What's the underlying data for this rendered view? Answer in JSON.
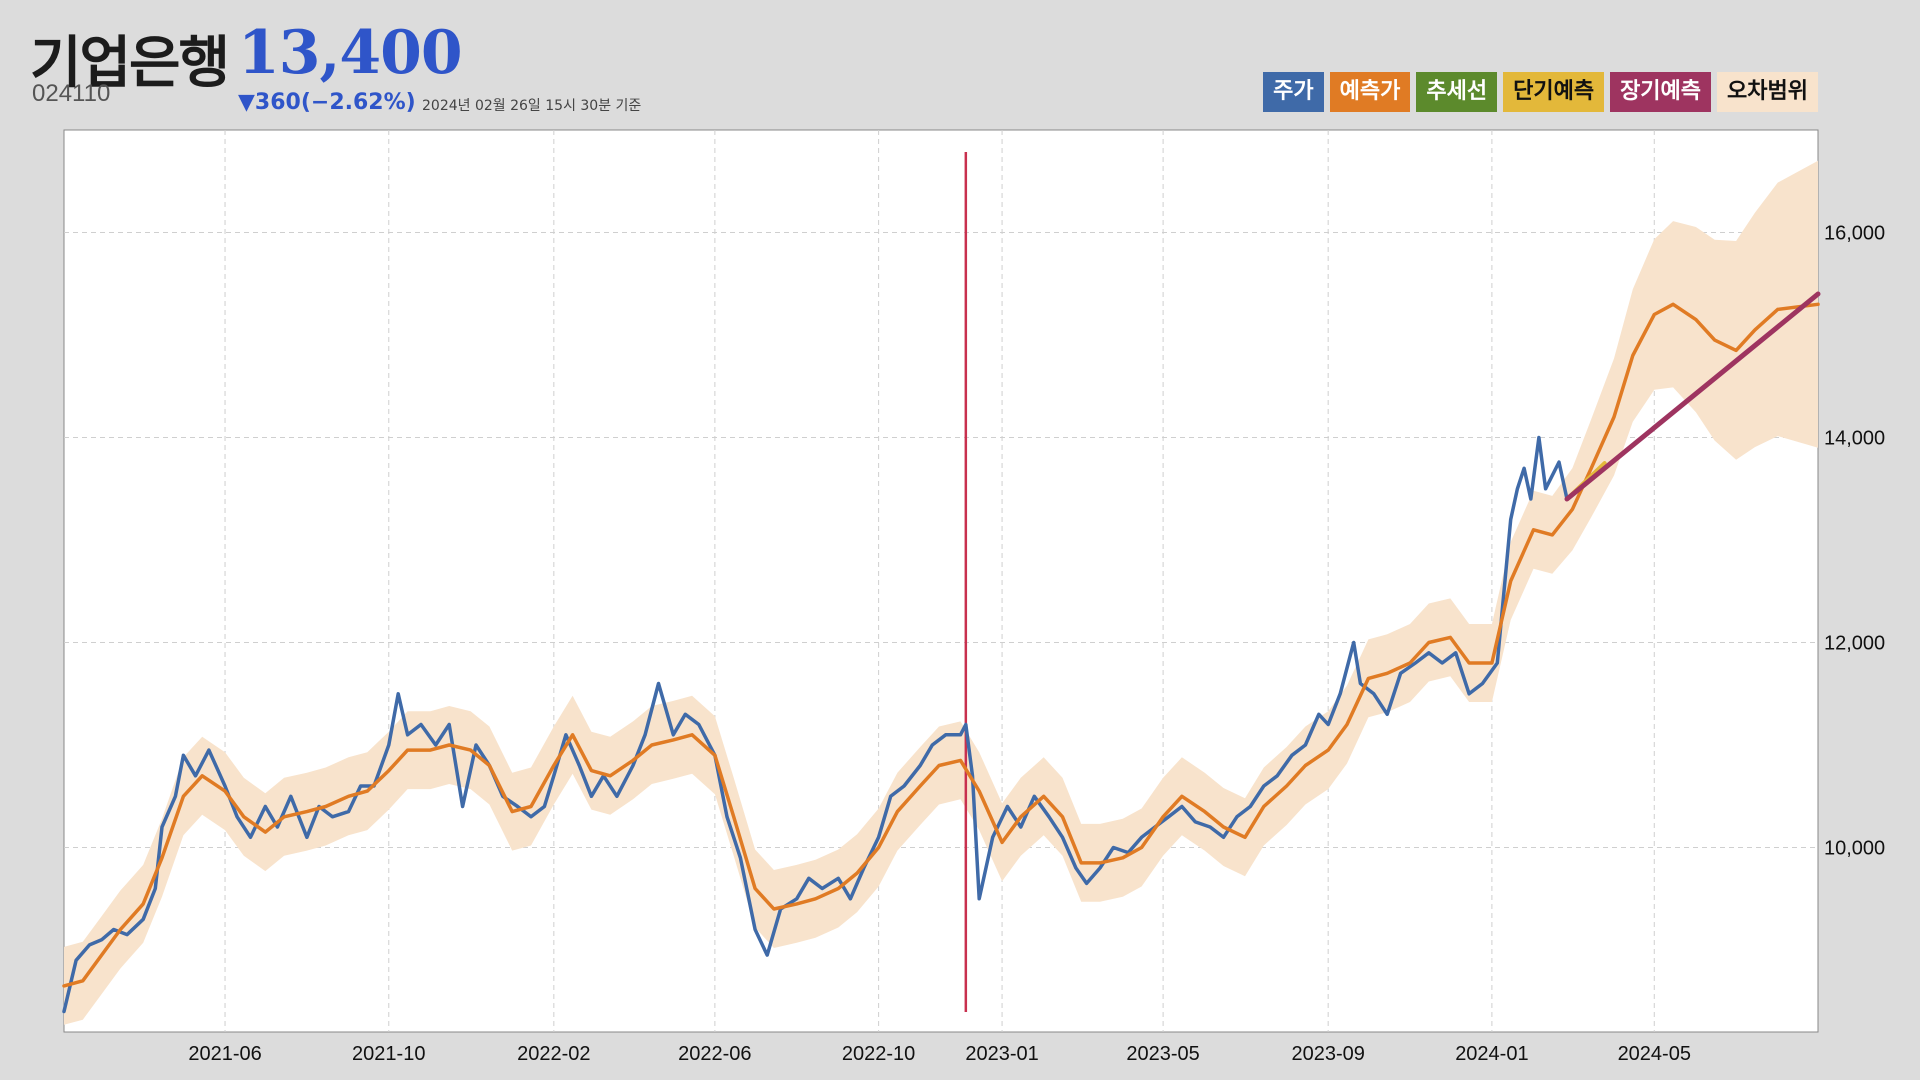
{
  "header": {
    "company_name": "기업은행",
    "price": "13,400",
    "ticker": "024110",
    "change": "▼360(−2.62%)",
    "as_of": "2024년 02월 26일 15시 30분 기준"
  },
  "legend": [
    {
      "label": "주가",
      "color": "#3f6aa8",
      "text_color": "#ffffff"
    },
    {
      "label": "예측가",
      "color": "#e07b24",
      "text_color": "#ffffff"
    },
    {
      "label": "추세선",
      "color": "#5c8a2c",
      "text_color": "#ffffff"
    },
    {
      "label": "단기예측",
      "color": "#e3b83a",
      "text_color": "#111111"
    },
    {
      "label": "장기예측",
      "color": "#9e3460",
      "text_color": "#ffffff"
    },
    {
      "label": "오차범위",
      "color": "#f8e3cc",
      "text_color": "#111111"
    }
  ],
  "chart_data": {
    "type": "line",
    "x_axis_type": "date",
    "xlim": [
      "2021-02-01",
      "2024-08-31"
    ],
    "ylim": [
      8200,
      17000
    ],
    "x_tick_labels": [
      "2021-06",
      "2021-10",
      "2022-02",
      "2022-06",
      "2022-10",
      "2023-01",
      "2023-05",
      "2023-09",
      "2024-01",
      "2024-05"
    ],
    "x_tick_dates": [
      "2021-06-01",
      "2021-10-01",
      "2022-02-01",
      "2022-06-01",
      "2022-10-01",
      "2023-01-01",
      "2023-05-01",
      "2023-09-01",
      "2024-01-01",
      "2024-05-01"
    ],
    "y_ticks": [
      10000,
      12000,
      14000,
      16000
    ],
    "y_tick_labels": [
      "10,000",
      "12,000",
      "14,000",
      "16,000"
    ],
    "grid": true,
    "vertical_marker_date": "2022-12-05",
    "colors": {
      "price": "#3f6aa8",
      "prediction": "#e07b24",
      "short_term": "#e3b83a",
      "long_term": "#9e3460",
      "error_band": "#f8e3cc",
      "marker": "#c8304e"
    },
    "series": [
      {
        "name": "주가",
        "points": [
          [
            "2021-02-01",
            8400
          ],
          [
            "2021-02-10",
            8900
          ],
          [
            "2021-02-20",
            9050
          ],
          [
            "2021-03-01",
            9100
          ],
          [
            "2021-03-10",
            9200
          ],
          [
            "2021-03-20",
            9150
          ],
          [
            "2021-04-01",
            9300
          ],
          [
            "2021-04-10",
            9600
          ],
          [
            "2021-04-15",
            10200
          ],
          [
            "2021-04-25",
            10500
          ],
          [
            "2021-05-01",
            10900
          ],
          [
            "2021-05-10",
            10700
          ],
          [
            "2021-05-20",
            10950
          ],
          [
            "2021-06-01",
            10600
          ],
          [
            "2021-06-10",
            10300
          ],
          [
            "2021-06-20",
            10100
          ],
          [
            "2021-07-01",
            10400
          ],
          [
            "2021-07-10",
            10200
          ],
          [
            "2021-07-20",
            10500
          ],
          [
            "2021-08-01",
            10100
          ],
          [
            "2021-08-10",
            10400
          ],
          [
            "2021-08-20",
            10300
          ],
          [
            "2021-09-01",
            10350
          ],
          [
            "2021-09-10",
            10600
          ],
          [
            "2021-09-20",
            10600
          ],
          [
            "2021-10-01",
            11000
          ],
          [
            "2021-10-08",
            11500
          ],
          [
            "2021-10-15",
            11100
          ],
          [
            "2021-10-25",
            11200
          ],
          [
            "2021-11-05",
            11000
          ],
          [
            "2021-11-15",
            11200
          ],
          [
            "2021-11-25",
            10400
          ],
          [
            "2021-12-05",
            11000
          ],
          [
            "2021-12-15",
            10800
          ],
          [
            "2021-12-25",
            10500
          ],
          [
            "2022-01-05",
            10400
          ],
          [
            "2022-01-15",
            10300
          ],
          [
            "2022-01-25",
            10400
          ],
          [
            "2022-02-01",
            10700
          ],
          [
            "2022-02-10",
            11100
          ],
          [
            "2022-02-20",
            10800
          ],
          [
            "2022-03-01",
            10500
          ],
          [
            "2022-03-10",
            10700
          ],
          [
            "2022-03-20",
            10500
          ],
          [
            "2022-04-01",
            10800
          ],
          [
            "2022-04-10",
            11100
          ],
          [
            "2022-04-20",
            11600
          ],
          [
            "2022-05-01",
            11100
          ],
          [
            "2022-05-10",
            11300
          ],
          [
            "2022-05-20",
            11200
          ],
          [
            "2022-06-01",
            10900
          ],
          [
            "2022-06-10",
            10300
          ],
          [
            "2022-06-20",
            9900
          ],
          [
            "2022-07-01",
            9200
          ],
          [
            "2022-07-10",
            8950
          ],
          [
            "2022-07-20",
            9400
          ],
          [
            "2022-08-01",
            9500
          ],
          [
            "2022-08-10",
            9700
          ],
          [
            "2022-08-20",
            9600
          ],
          [
            "2022-09-01",
            9700
          ],
          [
            "2022-09-10",
            9500
          ],
          [
            "2022-09-20",
            9800
          ],
          [
            "2022-10-01",
            10100
          ],
          [
            "2022-10-10",
            10500
          ],
          [
            "2022-10-20",
            10600
          ],
          [
            "2022-11-01",
            10800
          ],
          [
            "2022-11-10",
            11000
          ],
          [
            "2022-11-20",
            11100
          ],
          [
            "2022-12-01",
            11100
          ],
          [
            "2022-12-05",
            11200
          ],
          [
            "2022-12-10",
            10700
          ],
          [
            "2022-12-15",
            9500
          ],
          [
            "2022-12-25",
            10100
          ],
          [
            "2023-01-05",
            10400
          ],
          [
            "2023-01-15",
            10200
          ],
          [
            "2023-01-25",
            10500
          ],
          [
            "2023-02-05",
            10300
          ],
          [
            "2023-02-15",
            10100
          ],
          [
            "2023-02-25",
            9800
          ],
          [
            "2023-03-05",
            9650
          ],
          [
            "2023-03-15",
            9800
          ],
          [
            "2023-03-25",
            10000
          ],
          [
            "2023-04-05",
            9950
          ],
          [
            "2023-04-15",
            10100
          ],
          [
            "2023-04-25",
            10200
          ],
          [
            "2023-05-05",
            10300
          ],
          [
            "2023-05-15",
            10400
          ],
          [
            "2023-05-25",
            10250
          ],
          [
            "2023-06-05",
            10200
          ],
          [
            "2023-06-15",
            10100
          ],
          [
            "2023-06-25",
            10300
          ],
          [
            "2023-07-05",
            10400
          ],
          [
            "2023-07-15",
            10600
          ],
          [
            "2023-07-25",
            10700
          ],
          [
            "2023-08-05",
            10900
          ],
          [
            "2023-08-15",
            11000
          ],
          [
            "2023-08-25",
            11300
          ],
          [
            "2023-09-01",
            11200
          ],
          [
            "2023-09-10",
            11500
          ],
          [
            "2023-09-20",
            12000
          ],
          [
            "2023-09-25",
            11600
          ],
          [
            "2023-10-05",
            11500
          ],
          [
            "2023-10-15",
            11300
          ],
          [
            "2023-10-25",
            11700
          ],
          [
            "2023-11-05",
            11800
          ],
          [
            "2023-11-15",
            11900
          ],
          [
            "2023-11-25",
            11800
          ],
          [
            "2023-12-05",
            11900
          ],
          [
            "2023-12-15",
            11500
          ],
          [
            "2023-12-25",
            11600
          ],
          [
            "2024-01-05",
            11800
          ],
          [
            "2024-01-10",
            12500
          ],
          [
            "2024-01-15",
            13200
          ],
          [
            "2024-01-20",
            13500
          ],
          [
            "2024-01-25",
            13700
          ],
          [
            "2024-01-30",
            13400
          ],
          [
            "2024-02-05",
            14000
          ],
          [
            "2024-02-10",
            13500
          ],
          [
            "2024-02-20",
            13760
          ],
          [
            "2024-02-26",
            13400
          ]
        ]
      },
      {
        "name": "예측가",
        "points": [
          [
            "2021-02-01",
            8650
          ],
          [
            "2021-02-15",
            8700
          ],
          [
            "2021-03-01",
            8950
          ],
          [
            "2021-03-15",
            9200
          ],
          [
            "2021-04-01",
            9450
          ],
          [
            "2021-04-15",
            9900
          ],
          [
            "2021-05-01",
            10500
          ],
          [
            "2021-05-15",
            10700
          ],
          [
            "2021-06-01",
            10550
          ],
          [
            "2021-06-15",
            10300
          ],
          [
            "2021-07-01",
            10150
          ],
          [
            "2021-07-15",
            10300
          ],
          [
            "2021-08-01",
            10350
          ],
          [
            "2021-08-15",
            10400
          ],
          [
            "2021-09-01",
            10500
          ],
          [
            "2021-09-15",
            10550
          ],
          [
            "2021-10-01",
            10750
          ],
          [
            "2021-10-15",
            10950
          ],
          [
            "2021-11-01",
            10950
          ],
          [
            "2021-11-15",
            11000
          ],
          [
            "2021-12-01",
            10950
          ],
          [
            "2021-12-15",
            10800
          ],
          [
            "2022-01-01",
            10350
          ],
          [
            "2022-01-15",
            10400
          ],
          [
            "2022-02-01",
            10800
          ],
          [
            "2022-02-15",
            11100
          ],
          [
            "2022-03-01",
            10750
          ],
          [
            "2022-03-15",
            10700
          ],
          [
            "2022-04-01",
            10850
          ],
          [
            "2022-04-15",
            11000
          ],
          [
            "2022-05-01",
            11050
          ],
          [
            "2022-05-15",
            11100
          ],
          [
            "2022-06-01",
            10900
          ],
          [
            "2022-06-15",
            10300
          ],
          [
            "2022-07-01",
            9600
          ],
          [
            "2022-07-15",
            9400
          ],
          [
            "2022-08-01",
            9450
          ],
          [
            "2022-08-15",
            9500
          ],
          [
            "2022-09-01",
            9600
          ],
          [
            "2022-09-15",
            9750
          ],
          [
            "2022-10-01",
            10000
          ],
          [
            "2022-10-15",
            10350
          ],
          [
            "2022-11-01",
            10600
          ],
          [
            "2022-11-15",
            10800
          ],
          [
            "2022-12-01",
            10850
          ],
          [
            "2022-12-15",
            10550
          ],
          [
            "2023-01-01",
            10050
          ],
          [
            "2023-01-15",
            10300
          ],
          [
            "2023-02-01",
            10500
          ],
          [
            "2023-02-15",
            10300
          ],
          [
            "2023-03-01",
            9850
          ],
          [
            "2023-03-15",
            9850
          ],
          [
            "2023-04-01",
            9900
          ],
          [
            "2023-04-15",
            10000
          ],
          [
            "2023-05-01",
            10300
          ],
          [
            "2023-05-15",
            10500
          ],
          [
            "2023-06-01",
            10350
          ],
          [
            "2023-06-15",
            10200
          ],
          [
            "2023-07-01",
            10100
          ],
          [
            "2023-07-15",
            10400
          ],
          [
            "2023-08-01",
            10600
          ],
          [
            "2023-08-15",
            10800
          ],
          [
            "2023-09-01",
            10950
          ],
          [
            "2023-09-15",
            11200
          ],
          [
            "2023-10-01",
            11650
          ],
          [
            "2023-10-15",
            11700
          ],
          [
            "2023-11-01",
            11800
          ],
          [
            "2023-11-15",
            12000
          ],
          [
            "2023-12-01",
            12050
          ],
          [
            "2023-12-15",
            11800
          ],
          [
            "2024-01-01",
            11800
          ],
          [
            "2024-01-15",
            12600
          ],
          [
            "2024-02-01",
            13100
          ],
          [
            "2024-02-15",
            13050
          ],
          [
            "2024-03-01",
            13300
          ],
          [
            "2024-03-15",
            13700
          ],
          [
            "2024-04-01",
            14200
          ],
          [
            "2024-04-15",
            14800
          ],
          [
            "2024-05-01",
            15200
          ],
          [
            "2024-05-15",
            15300
          ],
          [
            "2024-06-01",
            15150
          ],
          [
            "2024-06-15",
            14950
          ],
          [
            "2024-07-01",
            14850
          ],
          [
            "2024-07-15",
            15050
          ],
          [
            "2024-08-01",
            15250
          ],
          [
            "2024-08-31",
            15300
          ]
        ]
      },
      {
        "name": "단기예측",
        "points": [
          [
            "2024-02-26",
            13400
          ],
          [
            "2024-03-25",
            13750
          ]
        ]
      },
      {
        "name": "장기예측",
        "points": [
          [
            "2024-02-26",
            13400
          ],
          [
            "2024-08-31",
            15400
          ]
        ]
      }
    ],
    "error_band_halfwidth": 380,
    "error_band_halfwidth_forecast_end": 1400
  }
}
